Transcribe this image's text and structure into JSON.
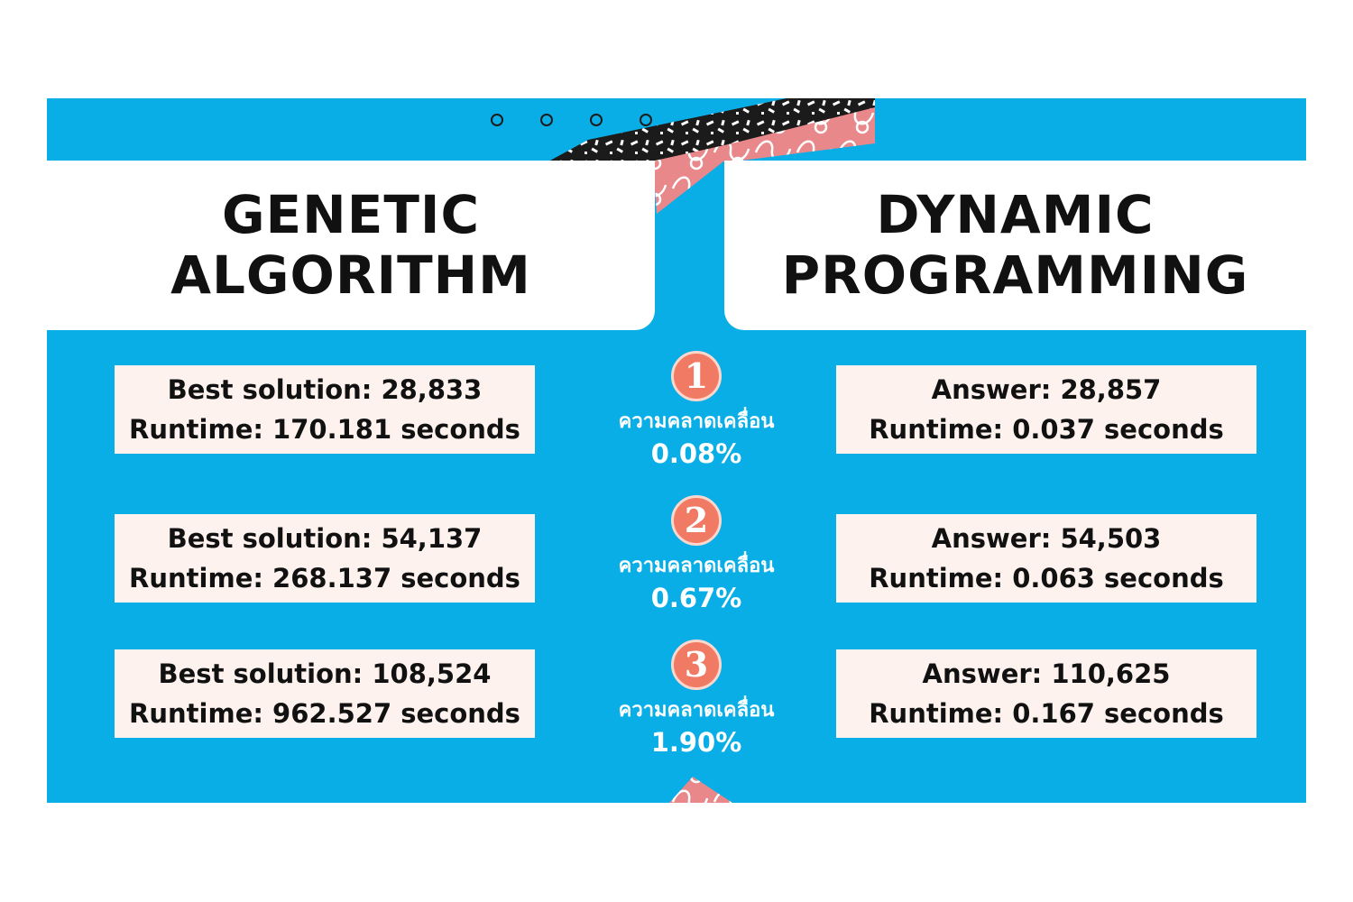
{
  "headers": {
    "left": [
      "GENETIC",
      "ALGORITHM"
    ],
    "right": [
      "DYNAMIC",
      "PROGRAMMING"
    ]
  },
  "rows": [
    {
      "badge": "1",
      "ga": [
        "Best solution: 28,833",
        "Runtime: 170.181 seconds"
      ],
      "deviation_label": "ความคลาดเคลื่อน",
      "deviation_value": "0.08%",
      "dp": [
        "Answer: 28,857",
        "Runtime: 0.037 seconds"
      ]
    },
    {
      "badge": "2",
      "ga": [
        "Best solution: 54,137",
        "Runtime: 268.137 seconds"
      ],
      "deviation_label": "ความคลาดเคลื่อน",
      "deviation_value": "0.67%",
      "dp": [
        "Answer: 54,503",
        "Runtime: 0.063 seconds"
      ]
    },
    {
      "badge": "3",
      "ga": [
        "Best solution: 108,524",
        "Runtime: 962.527 seconds"
      ],
      "deviation_label": "ความคลาดเคลื่อน",
      "deviation_value": "1.90%",
      "dp": [
        "Answer: 110,625",
        "Runtime: 0.167 seconds"
      ]
    }
  ],
  "colors": {
    "background": "#0aaee6",
    "card": "#ffffff",
    "result_box": "#fdf2ee",
    "badge": "#f07a63",
    "text_dark": "#111111",
    "text_light": "#ffffff",
    "pink_pattern": "#e9888a",
    "black_pattern": "#1b1b1b"
  }
}
